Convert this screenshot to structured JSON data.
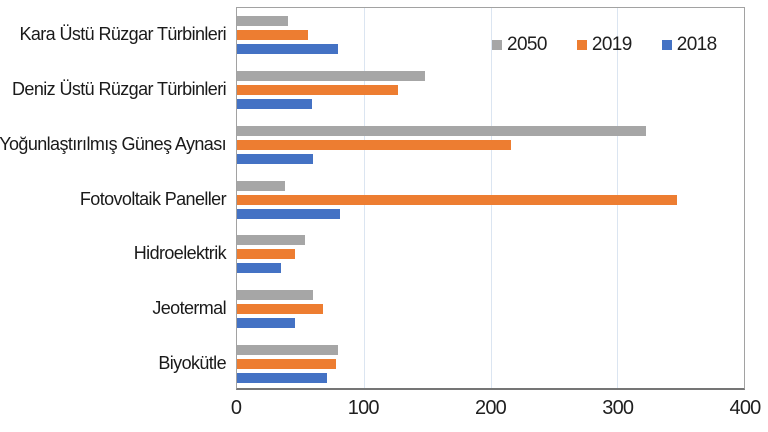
{
  "chart_data": {
    "type": "bar",
    "orientation": "horizontal",
    "title": "",
    "xlabel": "",
    "ylabel": "",
    "categories": [
      "Kara Üstü Rüzgar Türbinleri",
      "Deniz Üstü Rüzgar Türbinleri",
      "Yoğunlaştırılmış Güneş Aynası",
      "Fotovoltaik Paneller",
      "Hidroelektrik",
      "Jeotermal",
      "Biyokütle"
    ],
    "series": [
      {
        "name": "2050",
        "color": "#A6A6A6",
        "values": [
          40,
          148,
          323,
          38,
          54,
          60,
          80
        ]
      },
      {
        "name": "2019",
        "color": "#ED7D31",
        "values": [
          56,
          127,
          216,
          347,
          46,
          68,
          78
        ]
      },
      {
        "name": "2018",
        "color": "#4472C4",
        "values": [
          80,
          59,
          60,
          81,
          35,
          46,
          71
        ]
      }
    ],
    "x_axis": {
      "min": 0,
      "max": 400,
      "ticks": [
        0,
        100,
        200,
        300,
        400
      ]
    },
    "grid": true,
    "legend_position": "top-right-inside",
    "colors": {
      "gridline": "#dbe5f1",
      "plot_border": "#a2a2a2",
      "axis_line": "#757575",
      "text": "#1f1f1f",
      "background": "#ffffff"
    }
  }
}
